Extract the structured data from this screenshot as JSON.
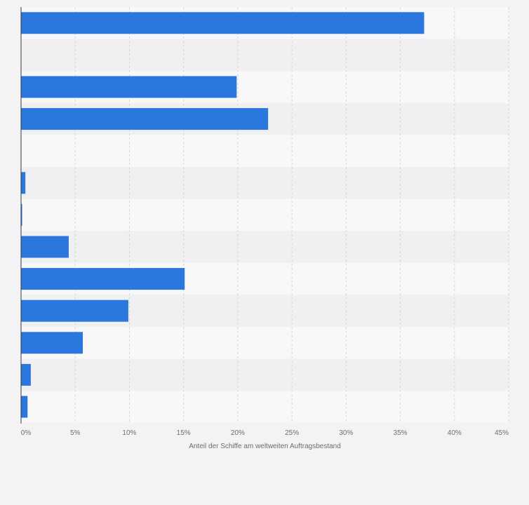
{
  "chart_data": {
    "type": "bar",
    "orientation": "horizontal",
    "categories": [
      "",
      "",
      "",
      "",
      "",
      "",
      "",
      "",
      "",
      "",
      "",
      "",
      ""
    ],
    "series": [
      {
        "values": [
          37.2,
          0,
          19.9,
          22.8,
          0,
          0.4,
          0.1,
          4.4,
          15.1,
          9.9,
          5.7,
          0.9,
          0.6
        ]
      }
    ],
    "xlabel": "Anteil der Schiffe am weltweiten Auftragsbestand",
    "xlim": [
      0,
      45
    ],
    "xticks": [
      0,
      5,
      10,
      15,
      20,
      25,
      30,
      35,
      40,
      45
    ],
    "xtick_labels": [
      "0%",
      "5%",
      "10%",
      "15%",
      "20%",
      "25%",
      "30%",
      "35%",
      "40%",
      "45%"
    ],
    "grid": true,
    "legend": "none",
    "colors": {
      "bar": "#2a77dd",
      "band_light": "#f8f8f9",
      "band_dark": "#f0f0f2",
      "grid": "#d6d6d6",
      "axis": "#3a3a3a",
      "text": "#6d6d6d",
      "background": "#f3f3f5"
    }
  }
}
